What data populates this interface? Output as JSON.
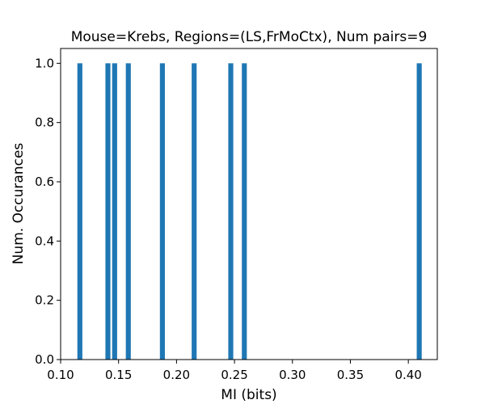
{
  "chart_data": {
    "type": "bar",
    "title": "Mouse=Krebs, Regions=(LS,FrMoCtx), Num pairs=9",
    "xlabel": "MI (bits)",
    "ylabel": "Num. Occurances",
    "xlim": [
      0.1,
      0.425
    ],
    "ylim": [
      0.0,
      1.05
    ],
    "bar_width": 0.0043,
    "bar_color": "#1f77b4",
    "xticks": [
      "0.10",
      "0.15",
      "0.20",
      "0.25",
      "0.30",
      "0.35",
      "0.40"
    ],
    "yticks": [
      "0.0",
      "0.2",
      "0.4",
      "0.6",
      "0.8",
      "1.0"
    ],
    "series": [
      {
        "x": [
          0.1166,
          0.1408,
          0.1466,
          0.1584,
          0.1878,
          0.2152,
          0.2468,
          0.2585,
          0.4094
        ],
        "values": [
          1,
          1,
          1,
          1,
          1,
          1,
          1,
          1,
          1
        ]
      }
    ],
    "grid": false,
    "legend": "none"
  }
}
